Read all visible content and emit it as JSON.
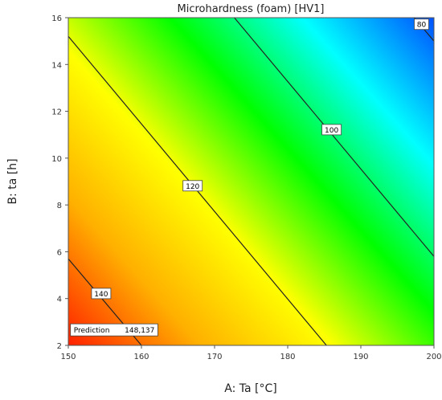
{
  "chart_data": {
    "type": "contour",
    "title": "Microhardness (foam) [HV1]",
    "xlabel": "A: Ta [°C]",
    "ylabel": "B: ta [h]",
    "xlim": [
      150,
      200
    ],
    "ylim": [
      2,
      16
    ],
    "x_ticks": [
      "150",
      "160",
      "170",
      "180",
      "190",
      "200"
    ],
    "y_ticks": [
      "2",
      "4",
      "6",
      "8",
      "10",
      "12",
      "14",
      "16"
    ],
    "x_tick_values": [
      150,
      160,
      170,
      180,
      190,
      200
    ],
    "y_tick_values": [
      2,
      4,
      6,
      8,
      10,
      12,
      14,
      16
    ],
    "colormap": [
      "#ff2000",
      "#ffb000",
      "#ffff00",
      "#00ff00",
      "#00ffff",
      "#0050ff"
    ],
    "value_range": [
      75,
      152
    ],
    "contours": [
      {
        "level": 140,
        "label": "140",
        "points": [
          [
            150,
            5.7
          ],
          [
            160,
            2.0
          ]
        ],
        "label_at": [
          154.5,
          4.2
        ]
      },
      {
        "level": 120,
        "label": "120",
        "points": [
          [
            150,
            15.2
          ],
          [
            185.3,
            2.0
          ]
        ],
        "label_at": [
          167.0,
          8.8
        ]
      },
      {
        "level": 100,
        "label": "100",
        "points": [
          [
            172.7,
            16.0
          ],
          [
            200,
            5.8
          ]
        ],
        "label_at": [
          186.0,
          11.2
        ]
      },
      {
        "level": 80,
        "label": "80",
        "points": [
          [
            197.3,
            16.0
          ],
          [
            200,
            15.0
          ]
        ],
        "label_at": [
          198.3,
          15.7
        ]
      }
    ],
    "prediction": {
      "label": "Prediction",
      "value": "148,137",
      "x": 150.3,
      "y": 2.2
    }
  }
}
